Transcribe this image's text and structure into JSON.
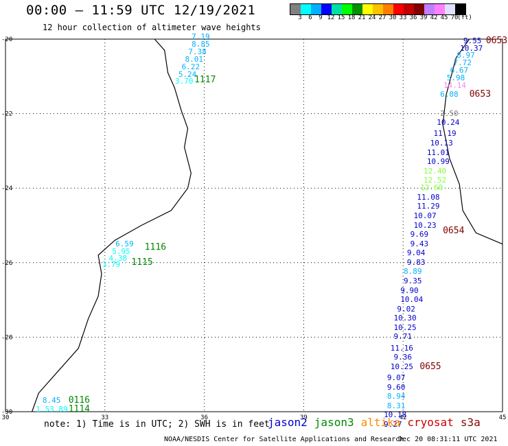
{
  "title": "00:00 – 11:59 UTC 12/19/2021",
  "subtitle": "12 hour collection of altimeter wave heights",
  "colorbar": {
    "colors": [
      "#808080",
      "#00ffff",
      "#00b0ff",
      "#0000ff",
      "#00e0a0",
      "#00ff00",
      "#009000",
      "#ffff00",
      "#ffc000",
      "#ff8000",
      "#ff0000",
      "#c00000",
      "#800000",
      "#c080ff",
      "#ff80ff",
      "#e0e0ff",
      "#000000"
    ],
    "ticks": [
      "3",
      "6",
      "9",
      "12",
      "15",
      "18",
      "21",
      "24",
      "27",
      "30",
      "33",
      "36",
      "39",
      "42",
      "45",
      "70",
      "(ft)"
    ]
  },
  "axes": {
    "lat_labels": [
      "-20",
      "-22",
      "-24",
      "-26",
      "-28",
      "-30"
    ],
    "lon_labels": [
      "30",
      "33",
      "36",
      "39",
      "42",
      "45"
    ]
  },
  "note": "note: 1) Time is in UTC; 2) SWH is in feet",
  "satellites": [
    {
      "name": "jason2",
      "color": "#0000cc"
    },
    {
      "name": "jason3",
      "color": "#008800"
    },
    {
      "name": "altika",
      "color": "#ff8800"
    },
    {
      "name": "cryosat",
      "color": "#cc0000"
    },
    {
      "name": "s3a",
      "color": "#880000"
    }
  ],
  "credit": "NOAA/NESDIS Center for Satellite Applications and Research",
  "stamp": "Dec 20 08:31:11 UTC 2021",
  "map_data": {
    "bounds": {
      "lon_min": 30,
      "lon_max": 45,
      "lat_min": -30,
      "lat_max": -20
    },
    "grid_lon": [
      33,
      36,
      39,
      42
    ],
    "grid_lat": [
      -22,
      -24,
      -26,
      -28
    ],
    "coastline": [
      [
        34.5,
        -20.0
      ],
      [
        34.8,
        -20.3
      ],
      [
        34.9,
        -20.9
      ],
      [
        35.1,
        -21.3
      ],
      [
        35.3,
        -21.9
      ],
      [
        35.5,
        -22.4
      ],
      [
        35.4,
        -22.9
      ],
      [
        35.6,
        -23.6
      ],
      [
        35.5,
        -24.0
      ],
      [
        35.0,
        -24.6
      ],
      [
        34.1,
        -25.0
      ],
      [
        33.3,
        -25.4
      ],
      [
        32.8,
        -25.8
      ],
      [
        32.9,
        -26.3
      ],
      [
        32.8,
        -26.9
      ],
      [
        32.5,
        -27.5
      ],
      [
        32.2,
        -28.3
      ],
      [
        31.6,
        -28.9
      ],
      [
        31.0,
        -29.5
      ],
      [
        30.8,
        -30.0
      ]
    ],
    "madagascar": [
      [
        44.0,
        -20.0
      ],
      [
        43.6,
        -20.5
      ],
      [
        43.3,
        -21.5
      ],
      [
        43.2,
        -22.3
      ],
      [
        43.4,
        -23.2
      ],
      [
        43.7,
        -23.9
      ],
      [
        43.8,
        -24.6
      ],
      [
        44.2,
        -25.2
      ],
      [
        45.0,
        -25.5
      ]
    ],
    "tracks": [
      {
        "time": "1117",
        "tcolor": "#008800",
        "lon": 35.7,
        "lat": -21.1,
        "points": [
          {
            "v": "7.19",
            "c": "#00b0ff",
            "lon": 35.7,
            "lat": -19.95
          },
          {
            "v": "8.85",
            "c": "#00b0ff",
            "lon": 35.7,
            "lat": -20.15
          },
          {
            "v": "7.38",
            "c": "#00b0ff",
            "lon": 35.6,
            "lat": -20.35
          },
          {
            "v": "8.01",
            "c": "#00b0ff",
            "lon": 35.5,
            "lat": -20.55
          },
          {
            "v": "6.22",
            "c": "#00b0ff",
            "lon": 35.4,
            "lat": -20.75
          },
          {
            "v": "5.24",
            "c": "#00b0ff",
            "lon": 35.3,
            "lat": -20.95
          },
          {
            "v": "3.70",
            "c": "#00ffff",
            "lon": 35.2,
            "lat": -21.15
          }
        ]
      },
      {
        "time": "1116",
        "tcolor": "#008800",
        "lon": 34.2,
        "lat": -25.6,
        "points": [
          {
            "v": "6.59",
            "c": "#00b0ff",
            "lon": 33.4,
            "lat": -25.5
          },
          {
            "v": "5.95",
            "c": "#00ffff",
            "lon": 33.3,
            "lat": -25.7
          },
          {
            "v": "4.38",
            "c": "#00ffff",
            "lon": 33.2,
            "lat": -25.9
          }
        ]
      },
      {
        "time": "1115",
        "tcolor": "#008800",
        "lon": 33.8,
        "lat": -26.0,
        "points": [
          {
            "v": "3.79",
            "c": "#00ffff",
            "lon": 33.0,
            "lat": -26.05
          }
        ]
      },
      {
        "time": "0116",
        "tcolor": "#008800",
        "lon": 31.9,
        "lat": -29.7,
        "points": [
          {
            "v": "8.45",
            "c": "#00b0ff",
            "lon": 31.2,
            "lat": -29.7
          }
        ]
      },
      {
        "time": "1114",
        "tcolor": "#008800",
        "lon": 31.9,
        "lat": -29.95,
        "points": [
          {
            "v": "1.53.89",
            "c": "#00ffff",
            "lon": 31.0,
            "lat": -29.95
          }
        ]
      },
      {
        "time": "0653",
        "tcolor": "#800000",
        "lon": 44.5,
        "lat": -20.05,
        "points": [
          {
            "v": "9.55",
            "c": "#0000cc",
            "lon": 43.9,
            "lat": -20.05
          },
          {
            "v": "10.37",
            "c": "#0000cc",
            "lon": 43.8,
            "lat": -20.25
          },
          {
            "v": "8.97",
            "c": "#00b0ff",
            "lon": 43.7,
            "lat": -20.45
          },
          {
            "v": "7.72",
            "c": "#00b0ff",
            "lon": 43.6,
            "lat": -20.65
          },
          {
            "v": "6.67",
            "c": "#00b0ff",
            "lon": 43.5,
            "lat": -20.85
          },
          {
            "v": "5.98",
            "c": "#00b0ff",
            "lon": 43.4,
            "lat": -21.05
          },
          {
            "v": "14.14",
            "c": "#ff80ff",
            "lon": 43.3,
            "lat": -21.25
          },
          {
            "v": "6.08",
            "c": "#00b0ff",
            "lon": 43.2,
            "lat": -21.5
          }
        ]
      },
      {
        "time": "0653",
        "tcolor": "#800000",
        "lon": 44.0,
        "lat": -21.5,
        "points": []
      },
      {
        "time": "0654",
        "tcolor": "#800000",
        "lon": 43.2,
        "lat": -25.15,
        "points": [
          {
            "v": "2.50",
            "c": "#808080",
            "lon": 43.2,
            "lat": -22.0
          },
          {
            "v": "10.24",
            "c": "#0000cc",
            "lon": 43.1,
            "lat": -22.25
          },
          {
            "v": "11.19",
            "c": "#0000cc",
            "lon": 43.0,
            "lat": -22.55
          },
          {
            "v": "10.13",
            "c": "#0000cc",
            "lon": 42.9,
            "lat": -22.8
          },
          {
            "v": "11.01",
            "c": "#0000cc",
            "lon": 42.8,
            "lat": -23.05
          },
          {
            "v": "10.99",
            "c": "#0000cc",
            "lon": 42.8,
            "lat": -23.3
          },
          {
            "v": "12.40",
            "c": "#80ff40",
            "lon": 42.7,
            "lat": -23.55
          },
          {
            "v": "12.52",
            "c": "#80ff40",
            "lon": 42.7,
            "lat": -23.8
          },
          {
            "v": "12.60",
            "c": "#80ff40",
            "lon": 42.6,
            "lat": -24.0
          },
          {
            "v": "11.08",
            "c": "#0000cc",
            "lon": 42.5,
            "lat": -24.25
          },
          {
            "v": "11.29",
            "c": "#0000cc",
            "lon": 42.5,
            "lat": -24.5
          },
          {
            "v": "10.07",
            "c": "#0000cc",
            "lon": 42.4,
            "lat": -24.75
          },
          {
            "v": "10.23",
            "c": "#0000cc",
            "lon": 42.4,
            "lat": -25.0
          },
          {
            "v": "9.69",
            "c": "#0000cc",
            "lon": 42.3,
            "lat": -25.25
          },
          {
            "v": "9.43",
            "c": "#0000cc",
            "lon": 42.3,
            "lat": -25.5
          },
          {
            "v": "9.04",
            "c": "#0000cc",
            "lon": 42.2,
            "lat": -25.75
          },
          {
            "v": "9.83",
            "c": "#0000cc",
            "lon": 42.2,
            "lat": -26.0
          },
          {
            "v": "8.89",
            "c": "#00b0ff",
            "lon": 42.1,
            "lat": -26.25
          }
        ]
      },
      {
        "time": "0655",
        "tcolor": "#800000",
        "lon": 42.5,
        "lat": -28.8,
        "points": [
          {
            "v": "9.35",
            "c": "#0000cc",
            "lon": 42.1,
            "lat": -26.5
          },
          {
            "v": "9.90",
            "c": "#0000cc",
            "lon": 42.0,
            "lat": -26.75
          },
          {
            "v": "10.04",
            "c": "#0000cc",
            "lon": 42.0,
            "lat": -27.0
          },
          {
            "v": "9.02",
            "c": "#0000cc",
            "lon": 41.9,
            "lat": -27.25
          },
          {
            "v": "10.30",
            "c": "#0000cc",
            "lon": 41.8,
            "lat": -27.5
          },
          {
            "v": "10.25",
            "c": "#0000cc",
            "lon": 41.8,
            "lat": -27.75
          },
          {
            "v": "9.71",
            "c": "#0000cc",
            "lon": 41.8,
            "lat": -28.0
          },
          {
            "v": "11.16",
            "c": "#0000cc",
            "lon": 41.7,
            "lat": -28.3
          },
          {
            "v": "9.36",
            "c": "#0000cc",
            "lon": 41.8,
            "lat": -28.55
          },
          {
            "v": "10.25",
            "c": "#0000cc",
            "lon": 41.7,
            "lat": -28.8
          },
          {
            "v": "9.07",
            "c": "#0000cc",
            "lon": 41.6,
            "lat": -29.1
          },
          {
            "v": "9.60",
            "c": "#0000cc",
            "lon": 41.6,
            "lat": -29.35
          },
          {
            "v": "8.94",
            "c": "#00b0ff",
            "lon": 41.6,
            "lat": -29.6
          },
          {
            "v": "8.31",
            "c": "#00b0ff",
            "lon": 41.6,
            "lat": -29.85
          },
          {
            "v": "10.18",
            "c": "#0000cc",
            "lon": 41.5,
            "lat": -30.1
          },
          {
            "v": "9.27",
            "c": "#0000cc",
            "lon": 41.5,
            "lat": -30.35
          }
        ]
      }
    ]
  }
}
